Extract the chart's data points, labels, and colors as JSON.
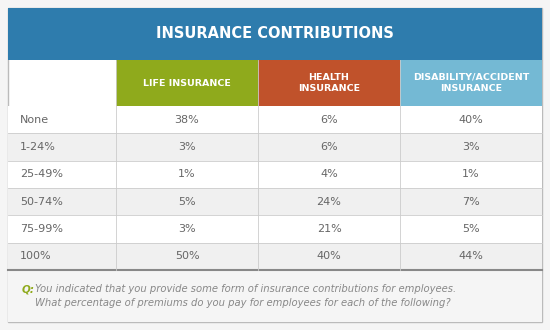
{
  "title": "INSURANCE CONTRIBUTIONS",
  "title_bg": "#2e7cad",
  "col_headers": [
    "LIFE INSURANCE",
    "HEALTH\nINSURANCE",
    "DISABILITY/ACCIDENT\nINSURANCE"
  ],
  "col_header_colors": [
    "#8faa1c",
    "#c0522b",
    "#74b9d4"
  ],
  "col_header_text_color": "#ffffff",
  "row_labels": [
    "None",
    "1-24%",
    "25-49%",
    "50-74%",
    "75-99%",
    "100%"
  ],
  "data": [
    [
      "38%",
      "6%",
      "40%"
    ],
    [
      "3%",
      "6%",
      "3%"
    ],
    [
      "1%",
      "4%",
      "1%"
    ],
    [
      "5%",
      "24%",
      "7%"
    ],
    [
      "3%",
      "21%",
      "5%"
    ],
    [
      "50%",
      "40%",
      "44%"
    ]
  ],
  "row_label_color": "#666666",
  "data_color": "#666666",
  "row_bg_even": "#ffffff",
  "row_bg_odd": "#f0f0f0",
  "footer_q_color": "#8faa1c",
  "footer_line1": "You indicated that you provide some form of insurance contributions for employees.",
  "footer_line2": "What percentage of premiums do you pay for employees for each of the following?",
  "footer_text_color": "#888888",
  "outer_border_color": "#bbbbbb",
  "divider_color": "#cccccc",
  "bottom_divider_color": "#888888",
  "background_color": "#f5f5f5",
  "table_bg": "#ffffff"
}
